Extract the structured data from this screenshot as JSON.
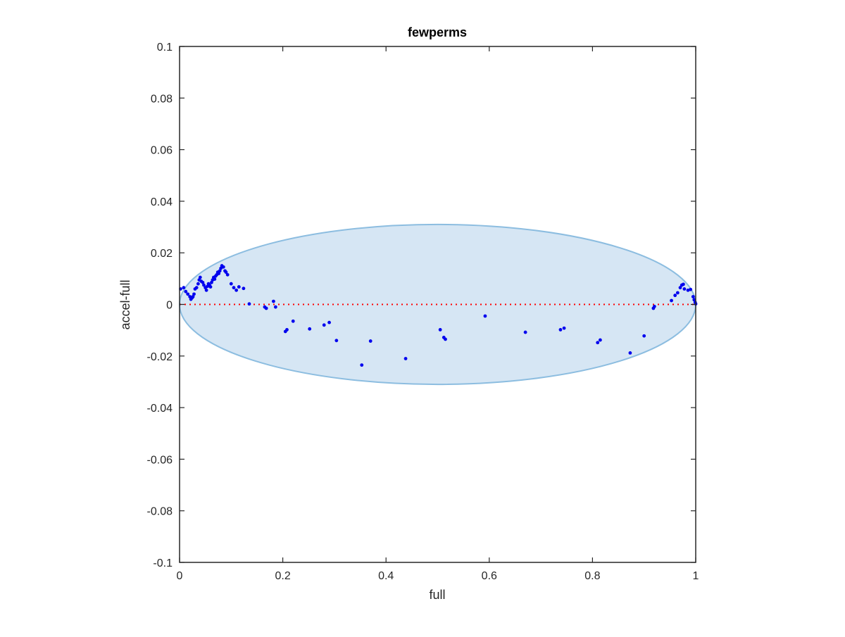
{
  "chart_data": {
    "type": "scatter",
    "title": "fewperms",
    "xlabel": "full",
    "ylabel": "accel-full",
    "xlim": [
      0,
      1
    ],
    "ylim": [
      -0.1,
      0.1
    ],
    "x_ticks": [
      0,
      0.2,
      0.4,
      0.6,
      0.8,
      1
    ],
    "x_tick_labels": [
      "0",
      "0.2",
      "0.4",
      "0.6",
      "0.8",
      "1"
    ],
    "y_ticks": [
      -0.1,
      -0.08,
      -0.06,
      -0.04,
      -0.02,
      0,
      0.02,
      0.04,
      0.06,
      0.08,
      0.1
    ],
    "y_tick_labels": [
      "-0.1",
      "-0.08",
      "-0.06",
      "-0.04",
      "-0.02",
      "0",
      "0.02",
      "0.04",
      "0.06",
      "0.08",
      "0.1"
    ],
    "grid": false,
    "colors": {
      "points": "#0000ee",
      "zero_line": "#ff0000",
      "ellipse_fill": "#d6e6f4",
      "ellipse_stroke": "#8cbde0",
      "axes": "#262626"
    },
    "ellipse": {
      "center": [
        0.5,
        0
      ],
      "x_radius": 0.5,
      "y_radius": 0.031
    },
    "zero_line": {
      "y": 0,
      "style": "dotted"
    },
    "points": [
      [
        0.002,
        0.006
      ],
      [
        0.008,
        0.0065
      ],
      [
        0.012,
        0.005
      ],
      [
        0.016,
        0.004
      ],
      [
        0.02,
        0.003
      ],
      [
        0.022,
        0.002
      ],
      [
        0.024,
        0.0025
      ],
      [
        0.026,
        0.003
      ],
      [
        0.028,
        0.004
      ],
      [
        0.03,
        0.006
      ],
      [
        0.033,
        0.0065
      ],
      [
        0.036,
        0.008
      ],
      [
        0.038,
        0.0095
      ],
      [
        0.04,
        0.0105
      ],
      [
        0.042,
        0.009
      ],
      [
        0.045,
        0.0085
      ],
      [
        0.047,
        0.0075
      ],
      [
        0.05,
        0.0065
      ],
      [
        0.052,
        0.0055
      ],
      [
        0.054,
        0.007
      ],
      [
        0.056,
        0.008
      ],
      [
        0.058,
        0.0075
      ],
      [
        0.06,
        0.0068
      ],
      [
        0.062,
        0.0085
      ],
      [
        0.064,
        0.0095
      ],
      [
        0.066,
        0.0105
      ],
      [
        0.068,
        0.0098
      ],
      [
        0.07,
        0.011
      ],
      [
        0.072,
        0.0115
      ],
      [
        0.074,
        0.0125
      ],
      [
        0.076,
        0.012
      ],
      [
        0.078,
        0.013
      ],
      [
        0.08,
        0.014
      ],
      [
        0.082,
        0.015
      ],
      [
        0.085,
        0.0145
      ],
      [
        0.088,
        0.013
      ],
      [
        0.09,
        0.0125
      ],
      [
        0.093,
        0.0115
      ],
      [
        0.1,
        0.008
      ],
      [
        0.105,
        0.0065
      ],
      [
        0.11,
        0.0055
      ],
      [
        0.115,
        0.0068
      ],
      [
        0.124,
        0.0062
      ],
      [
        0.135,
        0.0002
      ],
      [
        0.165,
        -0.001
      ],
      [
        0.168,
        -0.0015
      ],
      [
        0.182,
        0.0012
      ],
      [
        0.186,
        -0.001
      ],
      [
        0.205,
        -0.0105
      ],
      [
        0.208,
        -0.0098
      ],
      [
        0.22,
        -0.0065
      ],
      [
        0.252,
        -0.0095
      ],
      [
        0.28,
        -0.008
      ],
      [
        0.29,
        -0.007
      ],
      [
        0.304,
        -0.014
      ],
      [
        0.353,
        -0.0235
      ],
      [
        0.37,
        -0.0142
      ],
      [
        0.438,
        -0.021
      ],
      [
        0.505,
        -0.0098
      ],
      [
        0.512,
        -0.0128
      ],
      [
        0.515,
        -0.0135
      ],
      [
        0.592,
        -0.0045
      ],
      [
        0.67,
        -0.0108
      ],
      [
        0.738,
        -0.0098
      ],
      [
        0.745,
        -0.0092
      ],
      [
        0.81,
        -0.0148
      ],
      [
        0.815,
        -0.0138
      ],
      [
        0.873,
        -0.0188
      ],
      [
        0.9,
        -0.0122
      ],
      [
        0.918,
        -0.0015
      ],
      [
        0.92,
        -0.0008
      ],
      [
        0.953,
        0.0015
      ],
      [
        0.96,
        0.0035
      ],
      [
        0.965,
        0.0045
      ],
      [
        0.97,
        0.0065
      ],
      [
        0.973,
        0.0075
      ],
      [
        0.976,
        0.0078
      ],
      [
        0.978,
        0.006
      ],
      [
        0.985,
        0.0055
      ],
      [
        0.99,
        0.0058
      ],
      [
        0.995,
        0.003
      ],
      [
        0.997,
        0.0018
      ],
      [
        0.999,
        0.0008
      ],
      [
        1.0,
        0.0002
      ]
    ]
  }
}
